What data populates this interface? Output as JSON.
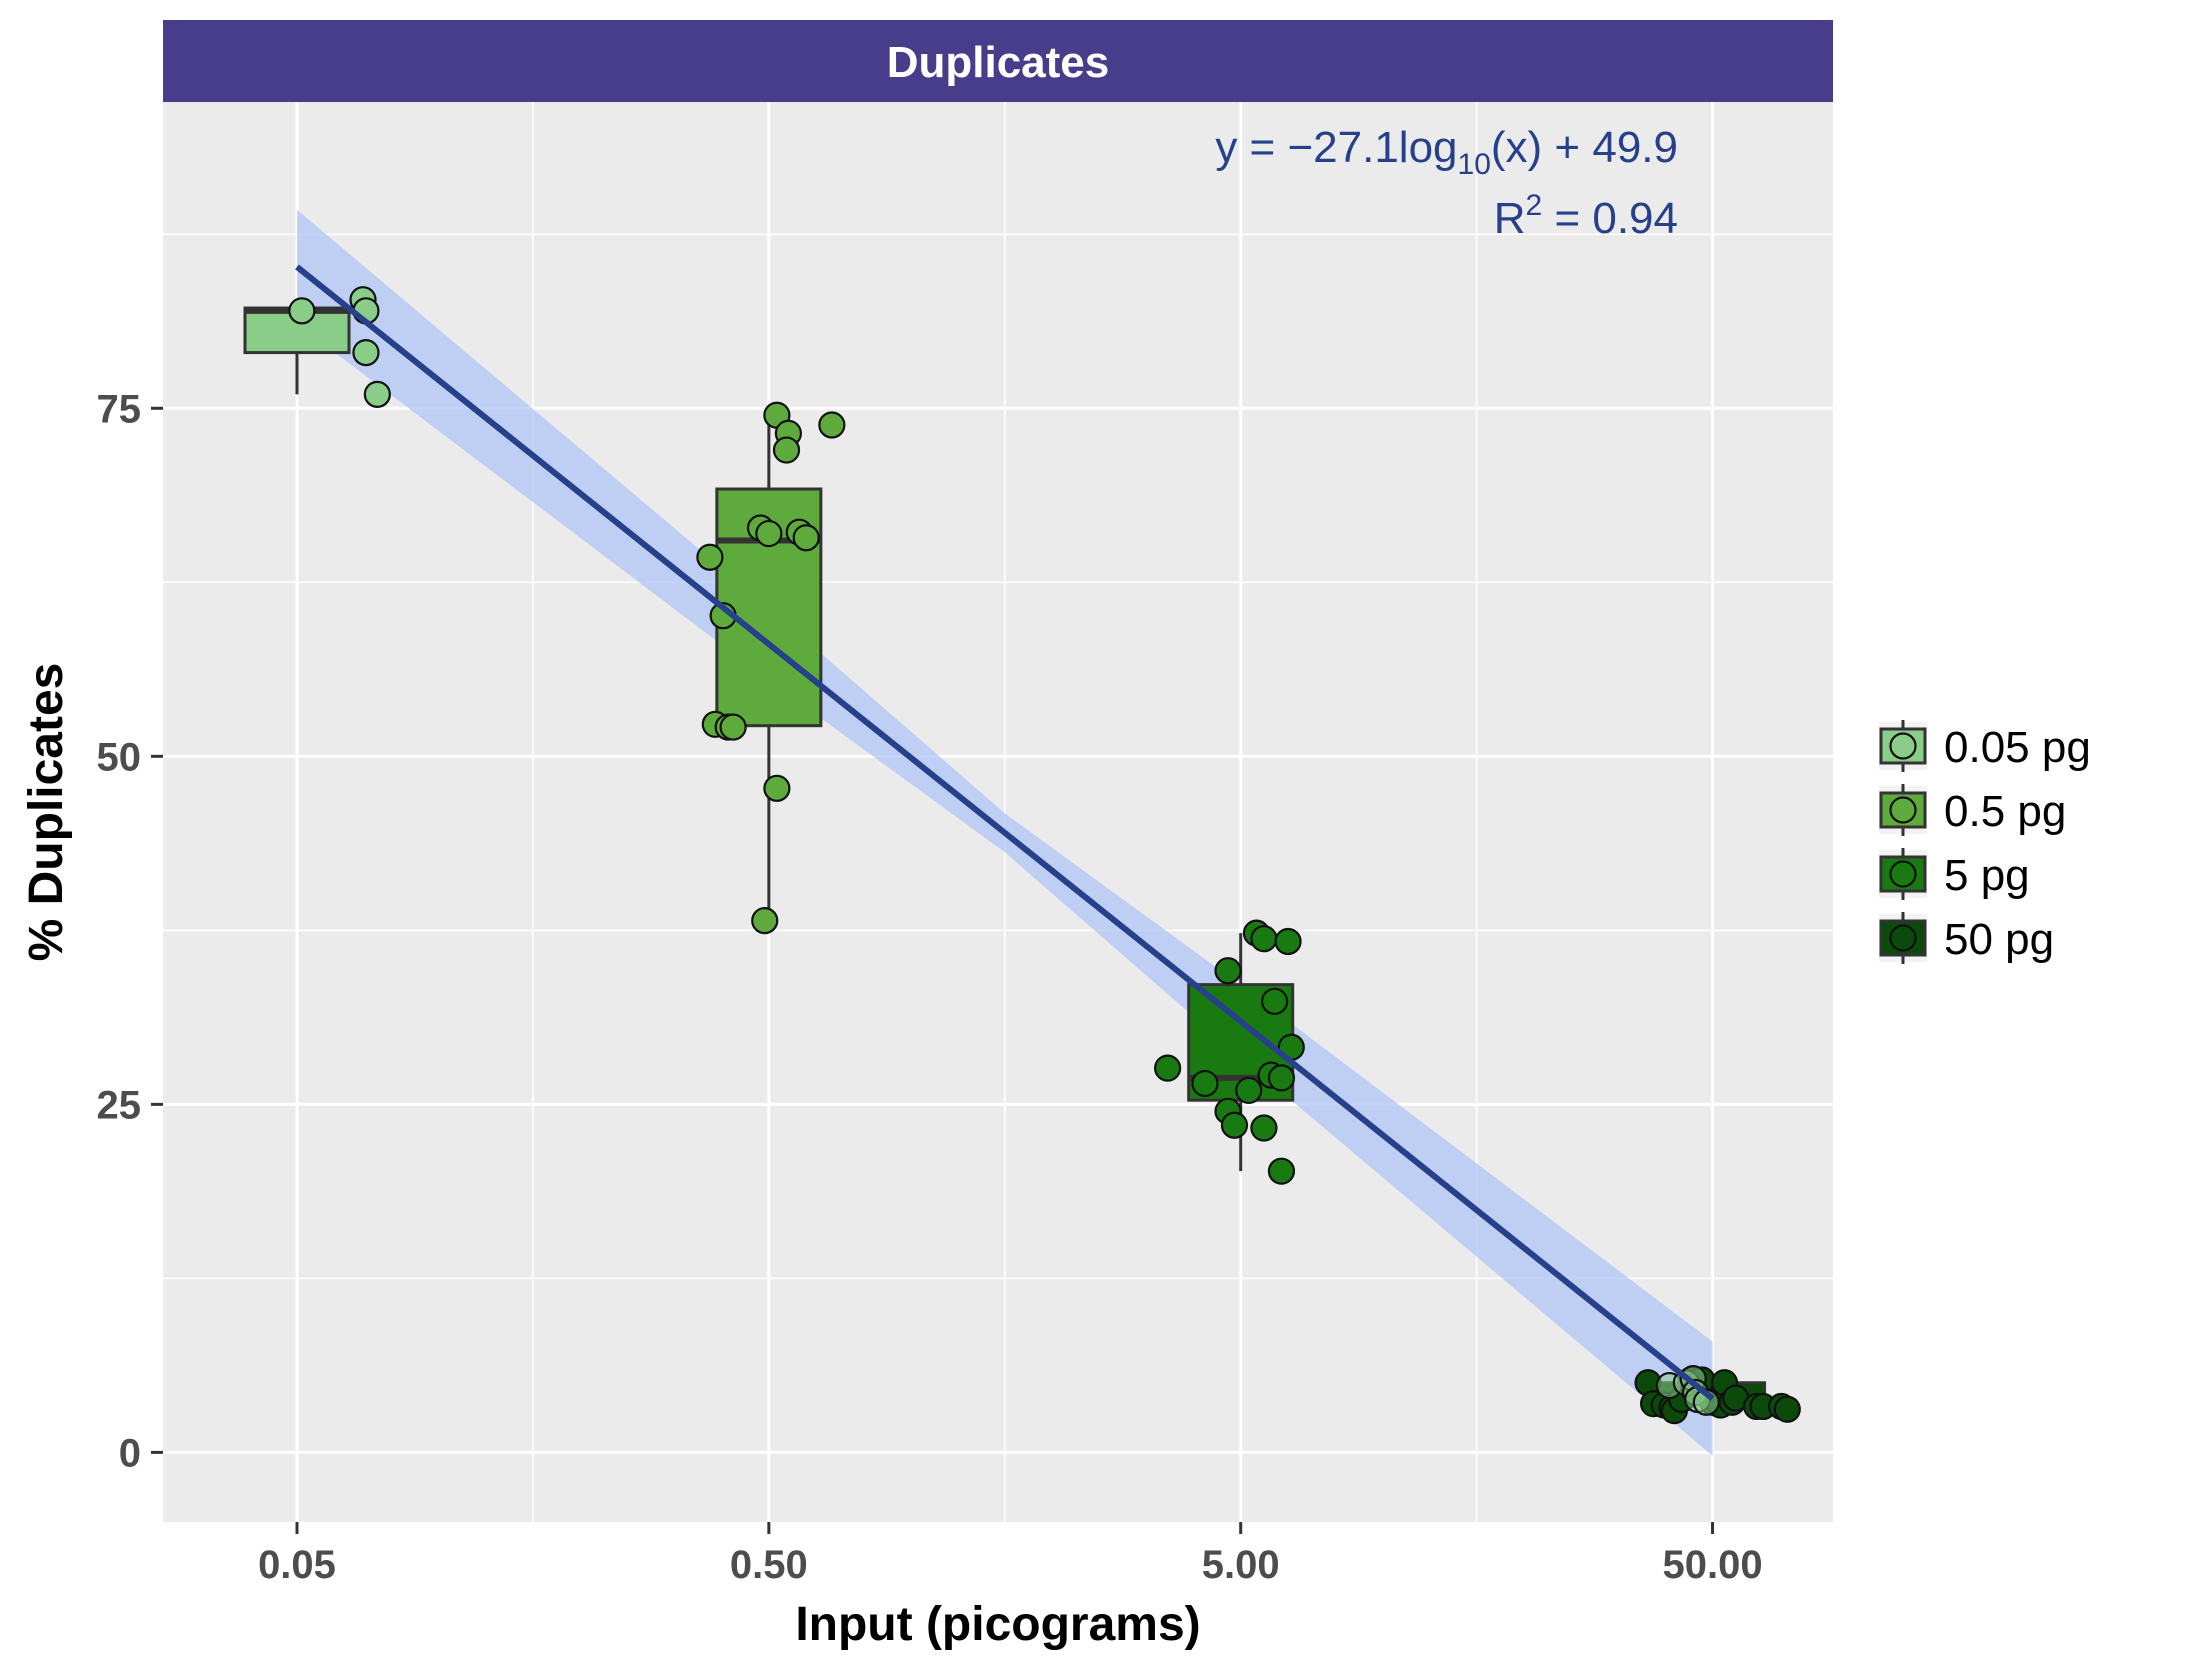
{
  "chart_data": {
    "type": "scatter",
    "title": "Duplicates",
    "xlabel": "Input (picograms)",
    "ylabel": "% Duplicates",
    "x_scale": "log10",
    "xlim": [
      0.026,
      90
    ],
    "ylim": [
      -5,
      97
    ],
    "x_ticks": [
      0.05,
      0.5,
      5,
      50
    ],
    "x_tick_labels": [
      "0.05",
      "0.50",
      "5.00",
      "50.00"
    ],
    "y_ticks": [
      0,
      25,
      50,
      75
    ],
    "y_tick_labels": [
      "0",
      "25",
      "50",
      "75"
    ],
    "grid": true,
    "legend_position": "right",
    "fit": {
      "equation_prefix": "y = −27.1log",
      "equation_sub": "10",
      "equation_suffix": "(x) + 49.9",
      "r2_prefix": "R",
      "r2_sup": "2",
      "r2_suffix": " = 0.94",
      "slope": -27.1,
      "intercept": 49.9,
      "x_range": [
        0.05,
        50
      ],
      "band_halfwidth": [
        4.1,
        2.6,
        1.4,
        2.6,
        4.1
      ],
      "band_x": [
        0.05,
        0.5,
        1.58,
        5,
        50
      ],
      "color": "#27408B",
      "band_color": "#B0C4F6"
    },
    "series": [
      {
        "name": "0.05 pg",
        "color": "#8ACD88",
        "box": {
          "x": 0.05,
          "q1": 79.0,
          "median": 82.0,
          "q3": 82.2,
          "min": 76.0,
          "max": 82.5
        },
        "points": [
          [
            0.0512,
            82.0
          ],
          [
            0.069,
            82.8
          ],
          [
            0.07,
            82.0
          ],
          [
            0.07,
            79.0
          ],
          [
            0.074,
            76.0
          ]
        ]
      },
      {
        "name": "0.5 pg",
        "color": "#5FAA3C",
        "box": {
          "x": 0.5,
          "q1": 52.2,
          "median": 65.5,
          "q3": 69.2,
          "min": 38.2,
          "max": 74.8
        },
        "points": [
          [
            0.375,
            64.3
          ],
          [
            0.4,
            60.1
          ],
          [
            0.385,
            52.3
          ],
          [
            0.41,
            52.1
          ],
          [
            0.42,
            52.1
          ],
          [
            0.48,
            66.4
          ],
          [
            0.5,
            66.0
          ],
          [
            0.52,
            74.5
          ],
          [
            0.55,
            73.2
          ],
          [
            0.545,
            72.0
          ],
          [
            0.58,
            66.1
          ],
          [
            0.6,
            65.7
          ],
          [
            0.68,
            73.8
          ],
          [
            0.52,
            47.7
          ],
          [
            0.49,
            38.2
          ]
        ]
      },
      {
        "name": "5 pg",
        "color": "#1A7A12",
        "box": {
          "x": 5,
          "q1": 25.3,
          "median": 26.9,
          "q3": 33.6,
          "min": 20.2,
          "max": 37.3
        },
        "points": [
          [
            3.5,
            27.6
          ],
          [
            4.2,
            26.5
          ],
          [
            4.7,
            34.6
          ],
          [
            4.7,
            24.5
          ],
          [
            4.85,
            23.5
          ],
          [
            5.2,
            26.0
          ],
          [
            5.4,
            37.3
          ],
          [
            5.6,
            36.9
          ],
          [
            6.3,
            36.7
          ],
          [
            5.9,
            32.4
          ],
          [
            5.8,
            27.1
          ],
          [
            6.1,
            26.9
          ],
          [
            6.4,
            29.1
          ],
          [
            5.6,
            23.3
          ],
          [
            6.1,
            20.2
          ]
        ]
      },
      {
        "name": "50 pg",
        "color": "#0B4A0B",
        "box": {
          "x": 50,
          "q1": 3.5,
          "median": 4.0,
          "q3": 5.0,
          "min": 3.0,
          "max": 5.6
        },
        "points": [
          [
            36.5,
            5.0
          ],
          [
            37.5,
            3.5
          ],
          [
            39.5,
            3.4
          ],
          [
            41,
            3.2
          ],
          [
            41.5,
            3.0
          ],
          [
            43,
            3.8
          ],
          [
            45,
            5.2
          ],
          [
            47.5,
            5.2
          ],
          [
            50,
            3.6
          ],
          [
            52,
            3.4
          ],
          [
            53,
            5.0
          ],
          [
            55,
            3.6
          ],
          [
            56,
            3.9
          ],
          [
            62,
            3.3
          ],
          [
            64,
            3.3
          ],
          [
            70,
            3.3
          ],
          [
            72,
            3.1
          ]
        ]
      },
      {
        "name": "0.05 pg overlay",
        "color": "#8ACD88",
        "overlay": true,
        "points": [
          [
            40.5,
            4.8
          ],
          [
            44,
            5.0
          ],
          [
            45.5,
            5.3
          ],
          [
            46,
            4.3
          ],
          [
            46.5,
            3.8
          ],
          [
            48.5,
            3.6
          ]
        ]
      }
    ]
  }
}
